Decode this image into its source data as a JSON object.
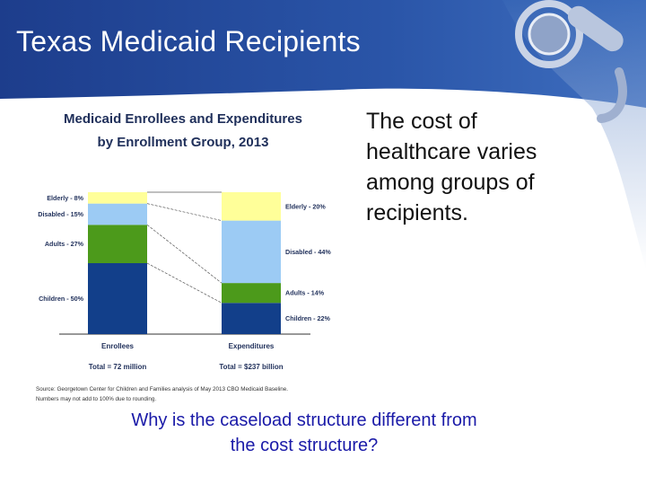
{
  "slide": {
    "title": "Texas Medicaid Recipients",
    "body_text": "The cost of healthcare varies among groups of recipients.",
    "question": "Why is the caseload structure different from the cost structure?"
  },
  "colors": {
    "header_blue": "#1f3f8f",
    "elderly": "#ffff99",
    "disabled": "#9ccbf4",
    "adults": "#4c9a1b",
    "children": "#123f8a"
  },
  "chart_data": {
    "type": "bar",
    "stacked": true,
    "normalized": true,
    "title_line1": "Medicaid Enrollees and Expenditures",
    "title_line2": "by Enrollment Group, 2013",
    "categories": [
      "Enrollees",
      "Expenditures"
    ],
    "totals": [
      "Total = 72 million",
      "Total = $237 billion"
    ],
    "series": [
      {
        "name": "Children",
        "values": [
          50,
          22
        ],
        "labels": [
          "Children - 50%",
          "Children - 22%"
        ],
        "color": "#123f8a"
      },
      {
        "name": "Adults",
        "values": [
          27,
          14
        ],
        "labels": [
          "Adults - 27%",
          "Adults - 14%"
        ],
        "color": "#4c9a1b"
      },
      {
        "name": "Disabled",
        "values": [
          15,
          44
        ],
        "labels": [
          "Disabled - 15%",
          "Disabled - 44%"
        ],
        "color": "#9ccbf4"
      },
      {
        "name": "Elderly",
        "values": [
          8,
          20
        ],
        "labels": [
          "Elderly - 8%",
          "Elderly - 20%"
        ],
        "color": "#ffff99"
      }
    ],
    "ylim": [
      0,
      100
    ],
    "source_line1": "Source: Georgetown Center for Children and Families analysis of May 2013 CBO Medicaid Baseline.",
    "source_line2": "Numbers may not add to 100% due to rounding."
  }
}
